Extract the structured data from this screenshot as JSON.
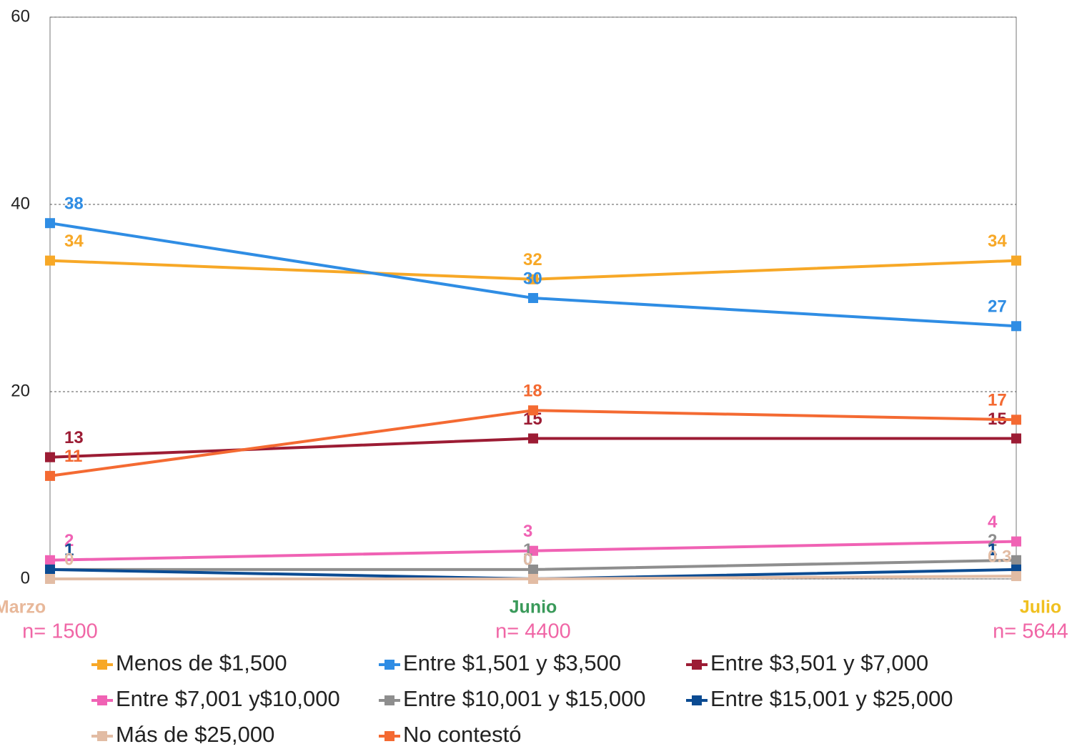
{
  "chart_data": {
    "type": "line",
    "categories": [
      "Marzo",
      "Junio",
      "Julio"
    ],
    "category_colors": [
      "#e8b89a",
      "#3a9a5a",
      "#f0c020"
    ],
    "sample_sizes": [
      "n= 1500",
      "n= 4400",
      "n= 5644"
    ],
    "sample_color": "#f066a6",
    "ylim": [
      0,
      60
    ],
    "yticks": [
      0,
      20,
      40,
      60
    ],
    "grid": true,
    "series": [
      {
        "name": "Menos de $1,500",
        "color": "#f7a827",
        "values": [
          34,
          32,
          34
        ]
      },
      {
        "name": "Entre $1,501 y $3,500",
        "color": "#2f8de4",
        "values": [
          38,
          30,
          27
        ]
      },
      {
        "name": "Entre $3,501 y $7,000",
        "color": "#9c1c34",
        "values": [
          13,
          15,
          15
        ]
      },
      {
        "name": "Entre $7,001 y$10,000",
        "color": "#f062b4",
        "values": [
          2,
          3,
          4
        ]
      },
      {
        "name": "Entre $10,001 y $15,000",
        "color": "#8e8e8e",
        "values": [
          1,
          1,
          2
        ]
      },
      {
        "name": "Entre $15,001 y $25,000",
        "color": "#0b4b92",
        "values": [
          1,
          0,
          1
        ]
      },
      {
        "name": "Más de $25,000",
        "color": "#e2bca4",
        "values": [
          0,
          0,
          0.3
        ]
      },
      {
        "name": "No contestó",
        "color": "#f46a32",
        "values": [
          11,
          18,
          17
        ]
      }
    ]
  }
}
